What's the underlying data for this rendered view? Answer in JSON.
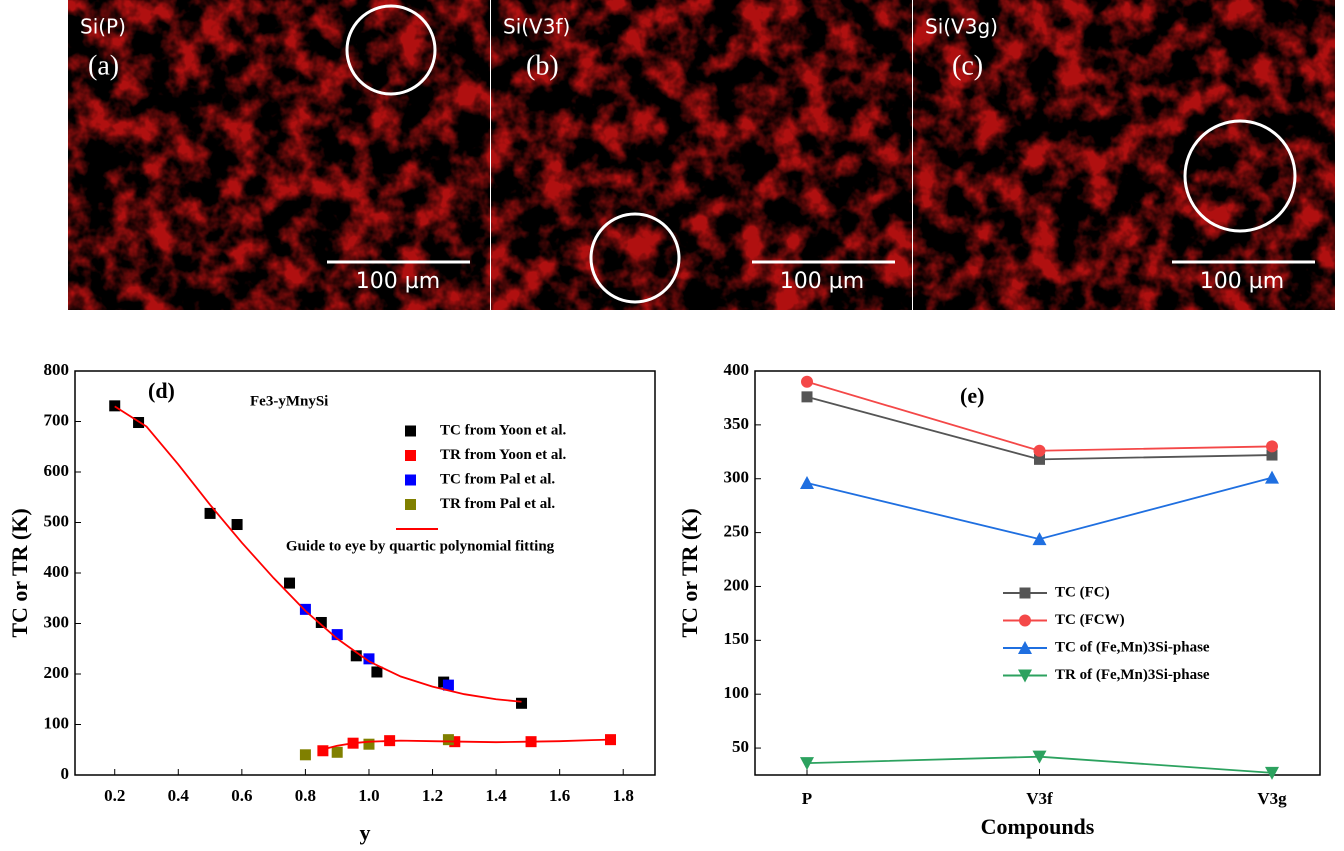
{
  "panels": [
    {
      "sample": "Si(P)",
      "label": "(a)",
      "scale": "100 µm"
    },
    {
      "sample": "Si(V3f)",
      "label": "(b)",
      "scale": "100 µm"
    },
    {
      "sample": "Si(V3g)",
      "label": "(c)",
      "scale": "100 µm"
    }
  ],
  "chart_data": [
    {
      "type": "scatter",
      "panel_label": "(d)",
      "formula": "Fe3-yMnySi",
      "x_label": "y",
      "y_label": "TC or TR (K)",
      "xlim": [
        0.075,
        1.9
      ],
      "ylim": [
        0,
        800
      ],
      "xticks": [
        0.2,
        0.4,
        0.6,
        0.8,
        {
          "value": 1,
          "label": "1.0"
        },
        1.2,
        1.4,
        1.6,
        1.8
      ],
      "yticks": [
        0,
        100,
        200,
        300,
        400,
        500,
        600,
        700,
        800
      ],
      "series": [
        {
          "name": "TC from Yoon et al.",
          "color": "#000000",
          "x": [
            0.2,
            0.275,
            0.5,
            0.585,
            0.75,
            0.85,
            0.96,
            1.025,
            1.235,
            1.48
          ],
          "values": [
            731,
            698,
            518,
            496,
            380,
            302,
            236,
            204,
            184,
            142
          ]
        },
        {
          "name": "TR from Yoon et al.",
          "color": "#ff0000",
          "x": [
            0.855,
            0.95,
            1.065,
            1.27,
            1.51,
            1.76
          ],
          "values": [
            48,
            63,
            68,
            66,
            66,
            70
          ]
        },
        {
          "name": "TC from Pal et al.",
          "color": "#0000ff",
          "x": [
            0.8,
            0.9,
            1.0,
            1.25
          ],
          "values": [
            328,
            278,
            230,
            178
          ]
        },
        {
          "name": "TR from Pal et al.",
          "color": "#808000",
          "x": [
            0.8,
            0.9,
            1.0,
            1.25
          ],
          "values": [
            40,
            45,
            61,
            70
          ]
        },
        {
          "name": "Guide to eye by quartic polynomial fitting",
          "color": "#ff0000",
          "kind": "line",
          "x": [
            0.2,
            0.3,
            0.4,
            0.5,
            0.6,
            0.7,
            0.8,
            0.9,
            1.0,
            1.1,
            1.2,
            1.3,
            1.4,
            1.48,
            null,
            0.85,
            0.9,
            0.95,
            1.0,
            1.1,
            1.2,
            1.3,
            1.4,
            1.5,
            1.6,
            1.7,
            1.76
          ],
          "values": [
            730,
            690,
            615,
            535,
            460,
            390,
            325,
            270,
            225,
            195,
            175,
            160,
            150,
            145,
            null,
            50,
            58,
            63,
            66,
            68,
            67,
            66,
            65,
            66,
            67,
            69,
            70
          ]
        }
      ]
    },
    {
      "type": "line",
      "panel_label": "(e)",
      "x_label": "Compounds",
      "y_label": "TC or TR (K)",
      "categories": [
        "P",
        "V3f",
        "V3g"
      ],
      "ylim": [
        25,
        400
      ],
      "yticks": [
        50,
        100,
        150,
        200,
        250,
        300,
        350,
        400
      ],
      "series": [
        {
          "name": "TC (FC)",
          "color": "#555555",
          "marker": "square",
          "values": [
            376,
            318,
            322
          ]
        },
        {
          "name": "TC (FCW)",
          "color": "#f44848",
          "marker": "circle",
          "values": [
            390,
            326,
            330
          ]
        },
        {
          "name": "TC of (Fe,Mn)3Si-phase",
          "color": "#1f6fe0",
          "marker": "triangle-up",
          "values": [
            296,
            244,
            301
          ]
        },
        {
          "name": "TR of (Fe,Mn)3Si-phase",
          "color": "#2ca25f",
          "marker": "triangle-down",
          "values": [
            36,
            42,
            27
          ]
        }
      ]
    }
  ]
}
